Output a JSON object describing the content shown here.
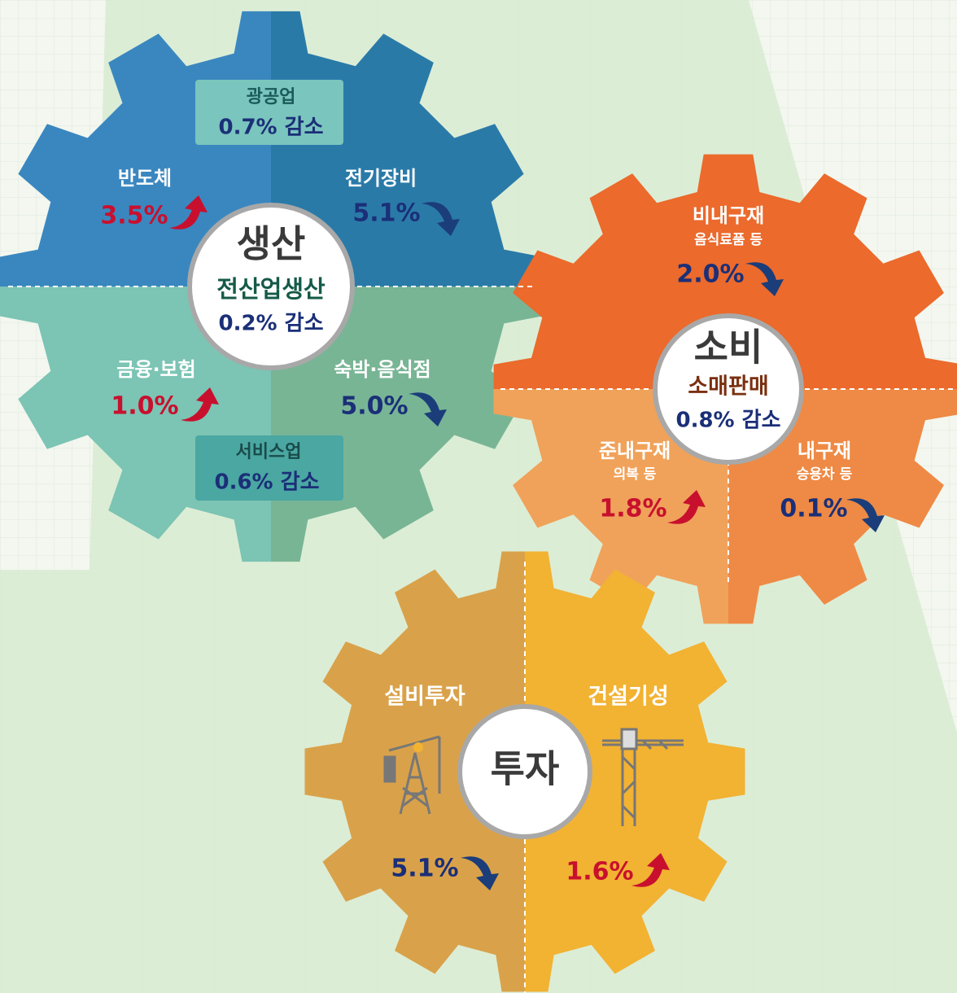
{
  "production": {
    "title": "생산",
    "center_label": "전산업생산",
    "center_value": "0.2% 감소",
    "top_box": {
      "label": "광공업",
      "value": "0.7% 감소"
    },
    "bottom_box": {
      "label": "서비스업",
      "value": "0.6% 감소"
    },
    "items": [
      {
        "label": "반도체",
        "value": "3.5%"
      },
      {
        "label": "전기장비",
        "value": "5.1%"
      },
      {
        "label": "금융·보험",
        "value": "1.0%"
      },
      {
        "label": "숙박·음식점",
        "value": "5.0%"
      }
    ]
  },
  "consumption": {
    "title": "소비",
    "center_label": "소매판매",
    "center_value": "0.8% 감소",
    "items": [
      {
        "label": "비내구재",
        "sublabel": "음식료품 등",
        "value": "2.0%"
      },
      {
        "label": "준내구재",
        "sublabel": "의복 등",
        "value": "1.8%"
      },
      {
        "label": "내구재",
        "sublabel": "승용차 등",
        "value": "0.1%"
      }
    ]
  },
  "investment": {
    "title": "투자",
    "items": [
      {
        "label": "설비투자",
        "value": "5.1%"
      },
      {
        "label": "건설기성",
        "value": "1.6%"
      }
    ]
  }
}
